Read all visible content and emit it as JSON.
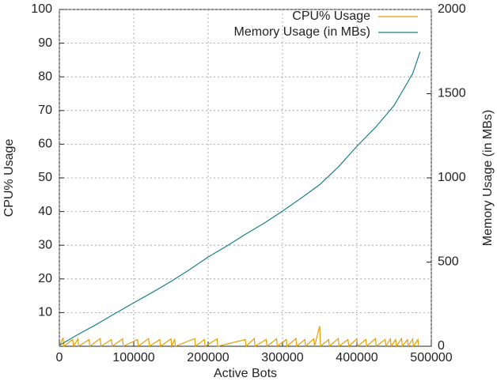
{
  "chart_data": {
    "type": "line",
    "xlabel": "Active Bots",
    "ylabel": "CPU% Usage",
    "y2label": "Memory Usage (in MBs)",
    "xlim": [
      0,
      500000
    ],
    "xticks": [
      0,
      100000,
      200000,
      300000,
      400000,
      500000
    ],
    "ylim": [
      0,
      100
    ],
    "yticks": [
      10,
      20,
      30,
      40,
      50,
      60,
      70,
      80,
      90,
      100
    ],
    "y2lim": [
      0,
      2000
    ],
    "y2ticks": [
      0,
      500,
      1000,
      1500,
      2000
    ],
    "grid": true,
    "legend": "top-right",
    "series": [
      {
        "name": "CPU% Usage",
        "color": "#e69f00",
        "x": [
          0,
          5000,
          6000,
          18000,
          19000,
          25000,
          26000,
          40000,
          41000,
          55000,
          56000,
          70000,
          71000,
          85000,
          86000,
          105000,
          106000,
          120000,
          121000,
          135000,
          136000,
          150000,
          151000,
          155000,
          156000,
          182000,
          183000,
          195000,
          196000,
          212000,
          213000,
          250000,
          251000,
          262000,
          263000,
          278000,
          279000,
          292000,
          293000,
          305000,
          306000,
          318000,
          319000,
          330000,
          331000,
          342000,
          343000,
          350000,
          351000,
          362000,
          363000,
          375000,
          376000,
          388000,
          389000,
          400000,
          401000,
          412000,
          413000,
          425000,
          426000,
          438000,
          439000,
          445000,
          446000,
          452000,
          453000,
          460000,
          461000,
          468000,
          469000,
          475000,
          476000,
          482000,
          483000
        ],
        "values": [
          0,
          2.5,
          0,
          2,
          0,
          2.2,
          0,
          2,
          0,
          2.3,
          0,
          2,
          0,
          2.2,
          0,
          2,
          0,
          2.3,
          0,
          2,
          0,
          2.2,
          0,
          2,
          0,
          2.3,
          0,
          2,
          0,
          2.2,
          0,
          2,
          0,
          2.3,
          0,
          2,
          0,
          2.2,
          0,
          2,
          0,
          2.3,
          0,
          2,
          0,
          2.2,
          0,
          6,
          0,
          2,
          0,
          2.3,
          0,
          2,
          0,
          2.2,
          0,
          2,
          0,
          2.3,
          0,
          2,
          0,
          2.2,
          0,
          2,
          0,
          2.3,
          0,
          2,
          0,
          2.2,
          0,
          2,
          0
        ]
      },
      {
        "name": "Memory Usage (in MBs)",
        "color": "#17808a",
        "axis": "y2",
        "x": [
          0,
          25000,
          50000,
          75000,
          100000,
          125000,
          150000,
          175000,
          200000,
          225000,
          250000,
          275000,
          300000,
          325000,
          350000,
          375000,
          400000,
          425000,
          450000,
          475000,
          485000
        ],
        "values": [
          5,
          70,
          130,
          195,
          258,
          320,
          385,
          455,
          530,
          595,
          665,
          730,
          803,
          880,
          960,
          1065,
          1188,
          1300,
          1430,
          1620,
          1750
        ]
      }
    ]
  }
}
